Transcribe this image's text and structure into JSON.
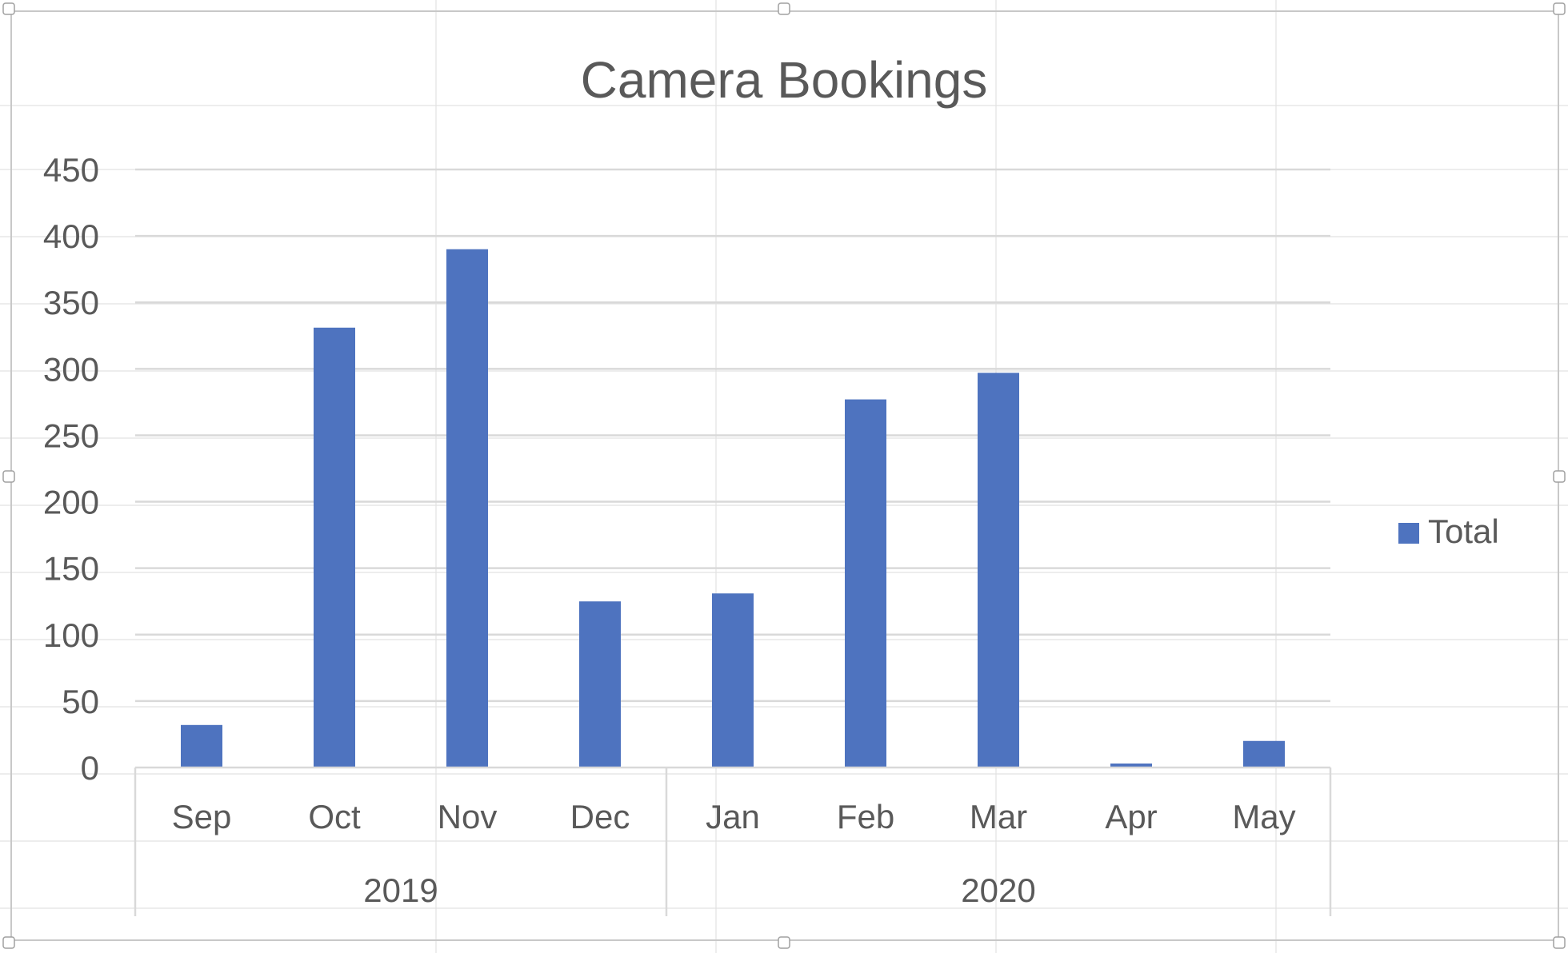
{
  "chart_data": {
    "type": "bar",
    "title": "Camera Bookings",
    "categories": [
      "Sep",
      "Oct",
      "Nov",
      "Dec",
      "Jan",
      "Feb",
      "Mar",
      "Apr",
      "May"
    ],
    "groups": [
      {
        "label": "2019",
        "categories": [
          "Sep",
          "Oct",
          "Nov",
          "Dec"
        ]
      },
      {
        "label": "2020",
        "categories": [
          "Jan",
          "Feb",
          "Mar",
          "Apr",
          "May"
        ]
      }
    ],
    "series": [
      {
        "name": "Total",
        "values": [
          32,
          331,
          390,
          125,
          131,
          277,
          297,
          3,
          20
        ],
        "color": "#4e73bf"
      }
    ],
    "ylim": [
      0,
      450
    ],
    "yticks": [
      "0",
      "50",
      "100",
      "150",
      "200",
      "250",
      "300",
      "350",
      "400",
      "450"
    ],
    "grid": true,
    "legend": "right"
  }
}
